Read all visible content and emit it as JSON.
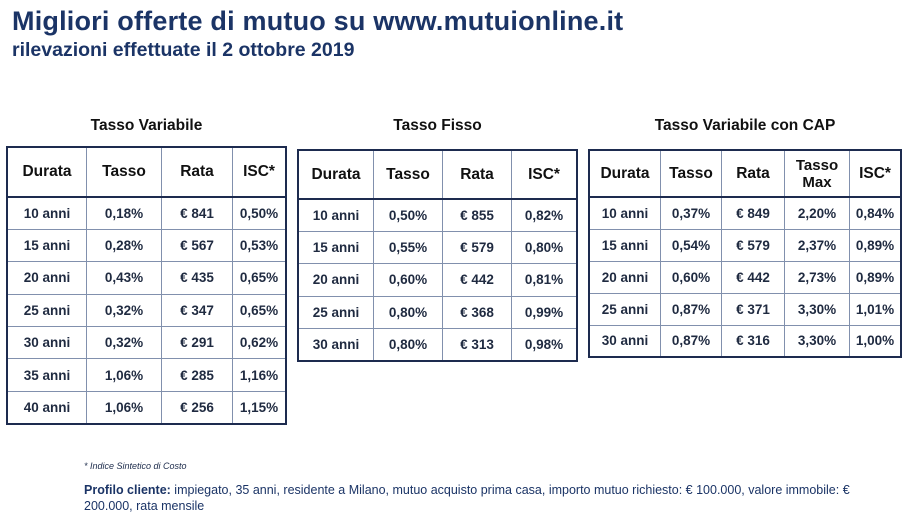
{
  "header": {
    "title": "Migliori offerte di mutuo su www.mutuionline.it",
    "subtitle": "rilevazioni effettuate il 2 ottobre 2019"
  },
  "tables": {
    "variabile": {
      "title": "Tasso Variabile",
      "headers": [
        "Durata",
        "Tasso",
        "Rata",
        "ISC*"
      ],
      "rows": [
        [
          "10 anni",
          "0,18%",
          "€ 841",
          "0,50%"
        ],
        [
          "15 anni",
          "0,28%",
          "€ 567",
          "0,53%"
        ],
        [
          "20 anni",
          "0,43%",
          "€ 435",
          "0,65%"
        ],
        [
          "25 anni",
          "0,32%",
          "€ 347",
          "0,65%"
        ],
        [
          "30 anni",
          "0,32%",
          "€ 291",
          "0,62%"
        ],
        [
          "35 anni",
          "1,06%",
          "€ 285",
          "1,16%"
        ],
        [
          "40 anni",
          "1,06%",
          "€ 256",
          "1,15%"
        ]
      ]
    },
    "fisso": {
      "title": "Tasso Fisso",
      "headers": [
        "Durata",
        "Tasso",
        "Rata",
        "ISC*"
      ],
      "rows": [
        [
          "10 anni",
          "0,50%",
          "€ 855",
          "0,82%"
        ],
        [
          "15 anni",
          "0,55%",
          "€ 579",
          "0,80%"
        ],
        [
          "20 anni",
          "0,60%",
          "€ 442",
          "0,81%"
        ],
        [
          "25 anni",
          "0,80%",
          "€ 368",
          "0,99%"
        ],
        [
          "30 anni",
          "0,80%",
          "€ 313",
          "0,98%"
        ]
      ]
    },
    "cap": {
      "title": "Tasso Variabile con CAP",
      "headers": [
        "Durata",
        "Tasso",
        "Rata",
        "Tasso Max",
        "ISC*"
      ],
      "tasso_max_lines": [
        "Tasso",
        "Max"
      ],
      "rows": [
        [
          "10 anni",
          "0,37%",
          "€ 849",
          "2,20%",
          "0,84%"
        ],
        [
          "15 anni",
          "0,54%",
          "€ 579",
          "2,37%",
          "0,89%"
        ],
        [
          "20 anni",
          "0,60%",
          "€ 442",
          "2,73%",
          "0,89%"
        ],
        [
          "25 anni",
          "0,87%",
          "€ 371",
          "3,30%",
          "1,01%"
        ],
        [
          "30 anni",
          "0,87%",
          "€ 316",
          "3,30%",
          "1,00%"
        ]
      ]
    }
  },
  "footer": {
    "note": "* Indice Sintetico di Costo",
    "profile_label": "Profilo cliente:",
    "profile_text": " impiegato, 35 anni, residente a Milano, mutuo acquisto prima casa, importo mutuo richiesto: € 100.000, valore immobile: € 200.000, rata mensile"
  },
  "colors": {
    "title": "#1b3466",
    "table_border": "#1d2b4f",
    "cell_border": "#8190ad"
  }
}
